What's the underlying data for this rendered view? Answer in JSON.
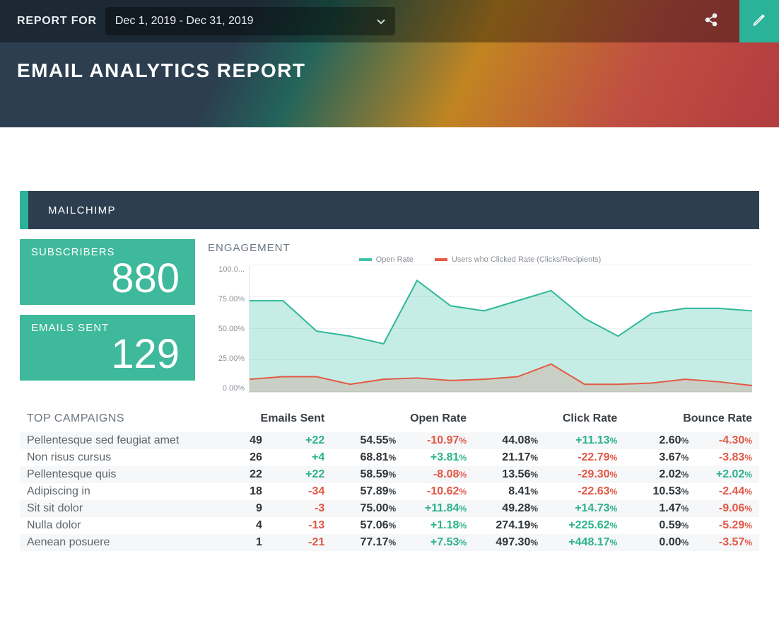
{
  "header": {
    "report_for_label": "REPORT FOR",
    "date_range": "Dec 1, 2019 - Dec 31, 2019",
    "page_title": "EMAIL ANALYTICS REPORT",
    "share_icon": "share-icon",
    "edit_icon": "edit-icon"
  },
  "section": {
    "title": "MAILCHIMP"
  },
  "stats": {
    "subscribers": {
      "label": "SUBSCRIBERS",
      "value": "880"
    },
    "emails_sent": {
      "label": "EMAILS SENT",
      "value": "129"
    },
    "card_bg": "#3fb99b",
    "card_text": "#ffffff"
  },
  "chart": {
    "title": "ENGAGEMENT",
    "type": "area",
    "legend": [
      {
        "label": "Open Rate",
        "color": "#3fc4a9"
      },
      {
        "label": "Users who Clicked Rate (Clicks/Recipients)",
        "color": "#e25b45"
      }
    ],
    "y_ticks": [
      "100.0...",
      "75.00%",
      "50.00%",
      "25.00%",
      "0.00%"
    ],
    "ylim": [
      0,
      100
    ],
    "grid_color": "#eef0f2",
    "axis_color": "#e2e5e8",
    "background_color": "#ffffff",
    "tick_fontsize": 11,
    "tick_color": "#8a9096",
    "series": [
      {
        "name": "Open Rate",
        "stroke": "#2fb79a",
        "fill": "rgba(63,196,169,0.30)",
        "stroke_width": 2,
        "values": [
          72,
          72,
          48,
          44,
          38,
          88,
          68,
          64,
          72,
          80,
          58,
          44,
          62,
          66,
          66,
          64
        ]
      },
      {
        "name": "Click Rate",
        "stroke": "#e25b45",
        "fill": "rgba(226,91,69,0.20)",
        "stroke_width": 2,
        "values": [
          10,
          12,
          12,
          6,
          10,
          11,
          9,
          10,
          12,
          22,
          6,
          6,
          7,
          10,
          8,
          5
        ]
      }
    ]
  },
  "table": {
    "title": "TOP CAMPAIGNS",
    "columns": [
      "Emails Sent",
      "Open Rate",
      "Click Rate",
      "Bounce Rate"
    ],
    "positive_color": "#2bb389",
    "negative_color": "#e15846",
    "row_alt_bg": "#f6f7f8",
    "rows": [
      {
        "name": "Pellentesque sed feugiat amet",
        "emails": "49",
        "emails_delta": "+22",
        "emails_delta_sign": "pos",
        "open": "54.55",
        "open_delta": "-10.97",
        "open_delta_sign": "neg",
        "click": "44.08",
        "click_delta": "+11.13",
        "click_delta_sign": "pos",
        "bounce": "2.60",
        "bounce_delta": "-4.30",
        "bounce_delta_sign": "neg"
      },
      {
        "name": "Non risus cursus",
        "emails": "26",
        "emails_delta": "+4",
        "emails_delta_sign": "pos",
        "open": "68.81",
        "open_delta": "+3.81",
        "open_delta_sign": "pos",
        "click": "21.17",
        "click_delta": "-22.79",
        "click_delta_sign": "neg",
        "bounce": "3.67",
        "bounce_delta": "-3.83",
        "bounce_delta_sign": "neg"
      },
      {
        "name": "Pellentesque quis",
        "emails": "22",
        "emails_delta": "+22",
        "emails_delta_sign": "pos",
        "open": "58.59",
        "open_delta": "-8.08",
        "open_delta_sign": "neg",
        "click": "13.56",
        "click_delta": "-29.30",
        "click_delta_sign": "neg",
        "bounce": "2.02",
        "bounce_delta": "+2.02",
        "bounce_delta_sign": "pos"
      },
      {
        "name": "Adipiscing in",
        "emails": "18",
        "emails_delta": "-34",
        "emails_delta_sign": "neg",
        "open": "57.89",
        "open_delta": "-10.62",
        "open_delta_sign": "neg",
        "click": "8.41",
        "click_delta": "-22.63",
        "click_delta_sign": "neg",
        "bounce": "10.53",
        "bounce_delta": "-2.44",
        "bounce_delta_sign": "neg"
      },
      {
        "name": "Sit sit dolor",
        "emails": "9",
        "emails_delta": "-3",
        "emails_delta_sign": "neg",
        "open": "75.00",
        "open_delta": "+11.84",
        "open_delta_sign": "pos",
        "click": "49.28",
        "click_delta": "+14.73",
        "click_delta_sign": "pos",
        "bounce": "1.47",
        "bounce_delta": "-9.06",
        "bounce_delta_sign": "neg"
      },
      {
        "name": "Nulla dolor",
        "emails": "4",
        "emails_delta": "-13",
        "emails_delta_sign": "neg",
        "open": "57.06",
        "open_delta": "+1.18",
        "open_delta_sign": "pos",
        "click": "274.19",
        "click_delta": "+225.62",
        "click_delta_sign": "pos",
        "bounce": "0.59",
        "bounce_delta": "-5.29",
        "bounce_delta_sign": "neg"
      },
      {
        "name": "Aenean posuere",
        "emails": "1",
        "emails_delta": "-21",
        "emails_delta_sign": "neg",
        "open": "77.17",
        "open_delta": "+7.53",
        "open_delta_sign": "pos",
        "click": "497.30",
        "click_delta": "+448.17",
        "click_delta_sign": "pos",
        "bounce": "0.00",
        "bounce_delta": "-3.57",
        "bounce_delta_sign": "neg"
      }
    ]
  }
}
